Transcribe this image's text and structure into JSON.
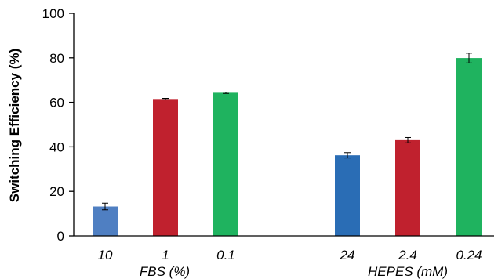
{
  "chart_data": {
    "type": "bar",
    "title": "",
    "ylabel": "Switching Efficiency (%)",
    "ylim": [
      0,
      100
    ],
    "yticks": [
      0,
      20,
      40,
      60,
      80,
      100
    ],
    "grid": false,
    "groups": [
      {
        "label": "FBS (%)",
        "categories": [
          "10",
          "1",
          "0.1"
        ],
        "values": [
          13.2,
          61.5,
          64.3
        ],
        "errors": [
          1.5,
          0.3,
          0.3
        ],
        "colors": [
          "#4f7fc2",
          "#c0212e",
          "#1fb35f"
        ]
      },
      {
        "label": "HEPES (mM)",
        "categories": [
          "24",
          "2.4",
          "0.24"
        ],
        "values": [
          36.2,
          43.0,
          79.9
        ],
        "errors": [
          1.2,
          1.2,
          2.2
        ],
        "colors": [
          "#2a6db5",
          "#c0212e",
          "#1fb35f"
        ]
      }
    ]
  }
}
